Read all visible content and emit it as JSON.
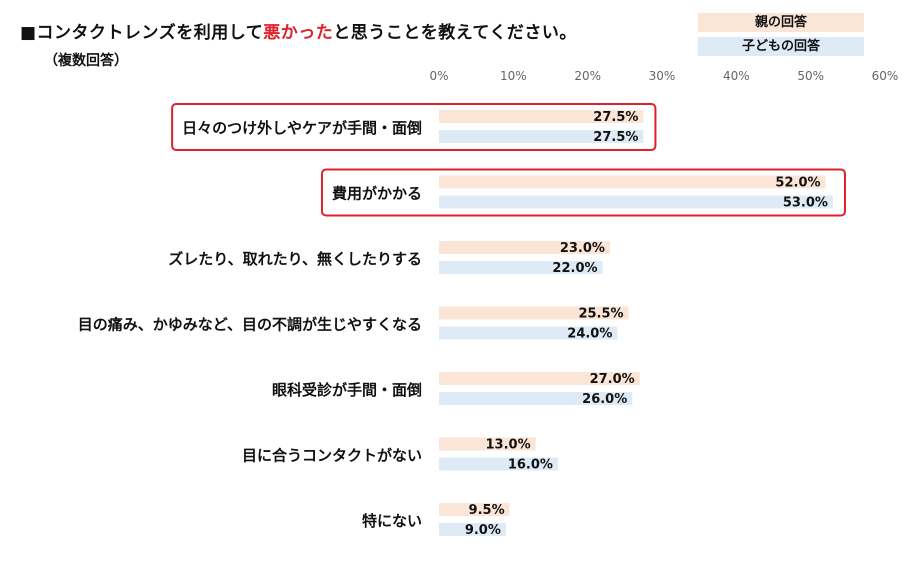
{
  "title": {
    "prefix": "■コンタクトレンズを利用して",
    "highlight": "悪かった",
    "suffix": "と思うことを教えてください。"
  },
  "subtitle": "（複数回答）",
  "colors": {
    "parent": "#fbe5d6",
    "child": "#deebf7",
    "highlight_border": "#e0202a",
    "title_highlight": "#e0202a"
  },
  "chart_data": {
    "type": "bar",
    "orientation": "horizontal",
    "categories": [
      "日々のつけ外しやケアが手間・面倒",
      "費用がかかる",
      "ズレたり、取れたり、無くしたりする",
      "目の痛み、かゆみなど、目の不調が生じやすくなる",
      "眼科受診が手間・面倒",
      "目に合うコンタクトがない",
      "特にない"
    ],
    "series": [
      {
        "name": "親の回答",
        "values": [
          27.5,
          52.0,
          23.0,
          25.5,
          27.0,
          13.0,
          9.5
        ]
      },
      {
        "name": "子どもの回答",
        "values": [
          27.5,
          53.0,
          22.0,
          24.0,
          26.0,
          16.0,
          9.0
        ]
      }
    ],
    "value_labels": [
      [
        "27.5%",
        "52.0%",
        "23.0%",
        "25.5%",
        "27.0%",
        "13.0%",
        "9.5%"
      ],
      [
        "27.5%",
        "53.0%",
        "22.0%",
        "24.0%",
        "26.0%",
        "16.0%",
        "9.0%"
      ]
    ],
    "xlim": [
      0,
      60
    ],
    "ticks": [
      "0%",
      "10%",
      "20%",
      "30%",
      "40%",
      "50%",
      "60%"
    ],
    "highlighted_categories": [
      0,
      1
    ],
    "legend_position": "top-right",
    "grid": false
  }
}
